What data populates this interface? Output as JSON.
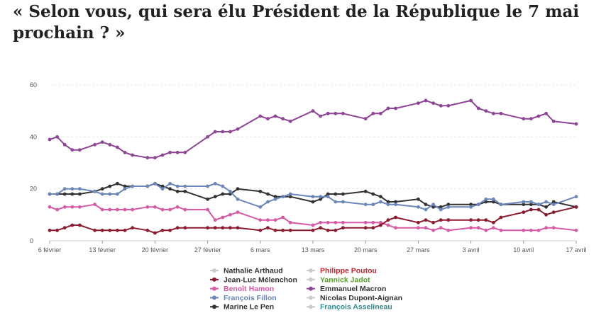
{
  "title": "« Selon vous, qui sera élu Président de la République le 7 mai prochain ? »",
  "chart_data": {
    "type": "line",
    "title": "« Selon vous, qui sera élu Président de la République le 7 mai prochain ? »",
    "xlabel": "",
    "ylabel": "",
    "ylim": [
      0,
      60
    ],
    "yticks": [
      0,
      20,
      40,
      60
    ],
    "xlim": [
      "2017-02-06",
      "2017-04-17"
    ],
    "xticks": [
      {
        "date": "2017-02-06",
        "label": "6 février"
      },
      {
        "date": "2017-02-13",
        "label": "13 février"
      },
      {
        "date": "2017-02-20",
        "label": "20 février"
      },
      {
        "date": "2017-02-27",
        "label": "27 février"
      },
      {
        "date": "2017-03-06",
        "label": "6 mars"
      },
      {
        "date": "2017-03-13",
        "label": "13 mars"
      },
      {
        "date": "2017-03-20",
        "label": "20 mars"
      },
      {
        "date": "2017-03-27",
        "label": "27 mars"
      },
      {
        "date": "2017-04-03",
        "label": "3 avril"
      },
      {
        "date": "2017-04-10",
        "label": "10 avril"
      },
      {
        "date": "2017-04-17",
        "label": "17 avril"
      }
    ],
    "grid": true,
    "legend_position": "bottom",
    "legend": [
      {
        "name": "Nathalie Arthaud",
        "color": "#cccccc",
        "text_color": "#333333"
      },
      {
        "name": "Philippe Poutou",
        "color": "#cccccc",
        "text_color": "#c1272d"
      },
      {
        "name": "Jean-Luc Mélenchon",
        "color": "#8b1a2f",
        "text_color": "#333333"
      },
      {
        "name": "Yannick Jadot",
        "color": "#cccccc",
        "text_color": "#5a9e2f"
      },
      {
        "name": "Benoît Hamon",
        "color": "#d65aa5",
        "text_color": "#d65aa5"
      },
      {
        "name": "Emmanuel Macron",
        "color": "#8e4596",
        "text_color": "#333333"
      },
      {
        "name": "François Fillon",
        "color": "#6b86b8",
        "text_color": "#6b86b8"
      },
      {
        "name": "Nicolas Dupont-Aignan",
        "color": "#cccccc",
        "text_color": "#333333"
      },
      {
        "name": "Marine Le Pen",
        "color": "#333333",
        "text_color": "#333333"
      },
      {
        "name": "François Asselineau",
        "color": "#cccccc",
        "text_color": "#2e8b8b"
      }
    ],
    "series": [
      {
        "name": "Emmanuel Macron",
        "color": "#8e4596",
        "x": [
          "2017-02-06",
          "2017-02-07",
          "2017-02-08",
          "2017-02-09",
          "2017-02-10",
          "2017-02-12",
          "2017-02-13",
          "2017-02-14",
          "2017-02-15",
          "2017-02-16",
          "2017-02-17",
          "2017-02-19",
          "2017-02-20",
          "2017-02-21",
          "2017-02-22",
          "2017-02-23",
          "2017-02-24",
          "2017-02-27",
          "2017-02-28",
          "2017-03-01",
          "2017-03-02",
          "2017-03-03",
          "2017-03-06",
          "2017-03-07",
          "2017-03-08",
          "2017-03-09",
          "2017-03-10",
          "2017-03-13",
          "2017-03-14",
          "2017-03-15",
          "2017-03-16",
          "2017-03-17",
          "2017-03-20",
          "2017-03-21",
          "2017-03-22",
          "2017-03-23",
          "2017-03-24",
          "2017-03-27",
          "2017-03-28",
          "2017-03-29",
          "2017-03-30",
          "2017-03-31",
          "2017-04-03",
          "2017-04-04",
          "2017-04-05",
          "2017-04-06",
          "2017-04-07",
          "2017-04-10",
          "2017-04-11",
          "2017-04-12",
          "2017-04-13",
          "2017-04-14",
          "2017-04-17"
        ],
        "y": [
          39,
          40,
          37,
          35,
          35,
          37,
          38,
          37,
          36,
          34,
          33,
          32,
          32,
          33,
          34,
          34,
          34,
          40,
          42,
          42,
          42,
          43,
          48,
          47,
          48,
          47,
          46,
          50,
          48,
          49,
          49,
          49,
          47,
          49,
          49,
          51,
          51,
          53,
          54,
          53,
          52,
          52,
          54,
          51,
          50,
          49,
          49,
          47,
          47,
          48,
          49,
          46,
          45
        ]
      },
      {
        "name": "Marine Le Pen",
        "color": "#333333",
        "x": [
          "2017-02-06",
          "2017-02-07",
          "2017-02-08",
          "2017-02-09",
          "2017-02-10",
          "2017-02-12",
          "2017-02-13",
          "2017-02-14",
          "2017-02-15",
          "2017-02-16",
          "2017-02-17",
          "2017-02-19",
          "2017-02-20",
          "2017-02-21",
          "2017-02-22",
          "2017-02-23",
          "2017-02-24",
          "2017-02-27",
          "2017-02-28",
          "2017-03-01",
          "2017-03-02",
          "2017-03-03",
          "2017-03-06",
          "2017-03-07",
          "2017-03-08",
          "2017-03-09",
          "2017-03-10",
          "2017-03-13",
          "2017-03-14",
          "2017-03-15",
          "2017-03-16",
          "2017-03-17",
          "2017-03-20",
          "2017-03-21",
          "2017-03-22",
          "2017-03-23",
          "2017-03-24",
          "2017-03-27",
          "2017-03-28",
          "2017-03-29",
          "2017-03-30",
          "2017-03-31",
          "2017-04-03",
          "2017-04-04",
          "2017-04-05",
          "2017-04-06",
          "2017-04-07",
          "2017-04-10",
          "2017-04-11",
          "2017-04-12",
          "2017-04-13",
          "2017-04-14",
          "2017-04-17"
        ],
        "y": [
          18,
          18,
          18,
          18,
          18,
          19,
          20,
          21,
          22,
          21,
          21,
          21,
          22,
          21,
          20,
          19,
          19,
          16,
          17,
          18,
          18,
          20,
          19,
          18,
          17,
          17,
          17,
          15,
          16,
          18,
          18,
          18,
          19,
          18,
          17,
          15,
          15,
          16,
          14,
          13,
          13,
          14,
          14,
          14,
          15,
          15,
          14,
          14,
          14,
          14,
          13,
          15,
          13
        ]
      },
      {
        "name": "François Fillon",
        "color": "#6b86b8",
        "x": [
          "2017-02-06",
          "2017-02-07",
          "2017-02-08",
          "2017-02-09",
          "2017-02-10",
          "2017-02-12",
          "2017-02-13",
          "2017-02-14",
          "2017-02-15",
          "2017-02-16",
          "2017-02-17",
          "2017-02-19",
          "2017-02-20",
          "2017-02-21",
          "2017-02-22",
          "2017-02-23",
          "2017-02-24",
          "2017-02-27",
          "2017-02-28",
          "2017-03-01",
          "2017-03-02",
          "2017-03-03",
          "2017-03-06",
          "2017-03-07",
          "2017-03-08",
          "2017-03-09",
          "2017-03-10",
          "2017-03-13",
          "2017-03-14",
          "2017-03-15",
          "2017-03-16",
          "2017-03-17",
          "2017-03-20",
          "2017-03-21",
          "2017-03-22",
          "2017-03-23",
          "2017-03-24",
          "2017-03-27",
          "2017-03-28",
          "2017-03-29",
          "2017-03-30",
          "2017-03-31",
          "2017-04-03",
          "2017-04-04",
          "2017-04-05",
          "2017-04-06",
          "2017-04-07",
          "2017-04-10",
          "2017-04-11",
          "2017-04-12",
          "2017-04-13",
          "2017-04-14",
          "2017-04-17"
        ],
        "y": [
          18,
          18,
          20,
          20,
          20,
          19,
          18,
          18,
          18,
          20,
          21,
          21,
          22,
          20,
          22,
          21,
          21,
          21,
          22,
          21,
          19,
          16,
          13,
          15,
          16,
          17,
          18,
          17,
          17,
          17,
          15,
          15,
          14,
          14,
          15,
          14,
          14,
          13,
          12,
          14,
          12,
          13,
          13,
          14,
          16,
          16,
          14,
          15,
          15,
          14,
          15,
          14,
          17
        ]
      },
      {
        "name": "Benoît Hamon",
        "color": "#d65aa5",
        "x": [
          "2017-02-06",
          "2017-02-07",
          "2017-02-08",
          "2017-02-09",
          "2017-02-10",
          "2017-02-12",
          "2017-02-13",
          "2017-02-14",
          "2017-02-15",
          "2017-02-16",
          "2017-02-17",
          "2017-02-19",
          "2017-02-20",
          "2017-02-21",
          "2017-02-22",
          "2017-02-23",
          "2017-02-24",
          "2017-02-27",
          "2017-02-28",
          "2017-03-01",
          "2017-03-02",
          "2017-03-03",
          "2017-03-06",
          "2017-03-07",
          "2017-03-08",
          "2017-03-09",
          "2017-03-10",
          "2017-03-13",
          "2017-03-14",
          "2017-03-15",
          "2017-03-16",
          "2017-03-17",
          "2017-03-20",
          "2017-03-21",
          "2017-03-22",
          "2017-03-23",
          "2017-03-24",
          "2017-03-27",
          "2017-03-28",
          "2017-03-29",
          "2017-03-30",
          "2017-03-31",
          "2017-04-03",
          "2017-04-04",
          "2017-04-05",
          "2017-04-06",
          "2017-04-07",
          "2017-04-10",
          "2017-04-11",
          "2017-04-12",
          "2017-04-13",
          "2017-04-14",
          "2017-04-17"
        ],
        "y": [
          13,
          12,
          13,
          13,
          13,
          14,
          12,
          12,
          12,
          12,
          12,
          13,
          13,
          12,
          12,
          13,
          12,
          12,
          8,
          9,
          10,
          11,
          8,
          8,
          8,
          9,
          7,
          6,
          7,
          7,
          7,
          7,
          7,
          7,
          7,
          6,
          5,
          5,
          5,
          4,
          5,
          4,
          5,
          5,
          4,
          5,
          4,
          4,
          4,
          4,
          5,
          5,
          4
        ]
      },
      {
        "name": "Jean-Luc Mélenchon",
        "color": "#8b1a2f",
        "x": [
          "2017-02-06",
          "2017-02-07",
          "2017-02-08",
          "2017-02-09",
          "2017-02-10",
          "2017-02-12",
          "2017-02-13",
          "2017-02-14",
          "2017-02-15",
          "2017-02-16",
          "2017-02-17",
          "2017-02-19",
          "2017-02-20",
          "2017-02-21",
          "2017-02-22",
          "2017-02-23",
          "2017-02-24",
          "2017-02-27",
          "2017-02-28",
          "2017-03-01",
          "2017-03-02",
          "2017-03-03",
          "2017-03-06",
          "2017-03-07",
          "2017-03-08",
          "2017-03-09",
          "2017-03-10",
          "2017-03-13",
          "2017-03-14",
          "2017-03-15",
          "2017-03-16",
          "2017-03-17",
          "2017-03-20",
          "2017-03-21",
          "2017-03-22",
          "2017-03-23",
          "2017-03-24",
          "2017-03-27",
          "2017-03-28",
          "2017-03-29",
          "2017-03-30",
          "2017-03-31",
          "2017-04-03",
          "2017-04-04",
          "2017-04-05",
          "2017-04-06",
          "2017-04-07",
          "2017-04-10",
          "2017-04-11",
          "2017-04-12",
          "2017-04-13",
          "2017-04-14",
          "2017-04-17"
        ],
        "y": [
          4,
          4,
          5,
          6,
          6,
          4,
          4,
          4,
          4,
          4,
          5,
          4,
          3,
          4,
          4,
          5,
          5,
          5,
          5,
          5,
          5,
          5,
          4,
          5,
          4,
          4,
          4,
          4,
          5,
          4,
          4,
          5,
          5,
          5,
          6,
          8,
          9,
          7,
          8,
          7,
          8,
          8,
          8,
          8,
          8,
          7,
          9,
          11,
          12,
          12,
          10,
          11,
          13
        ]
      }
    ]
  }
}
